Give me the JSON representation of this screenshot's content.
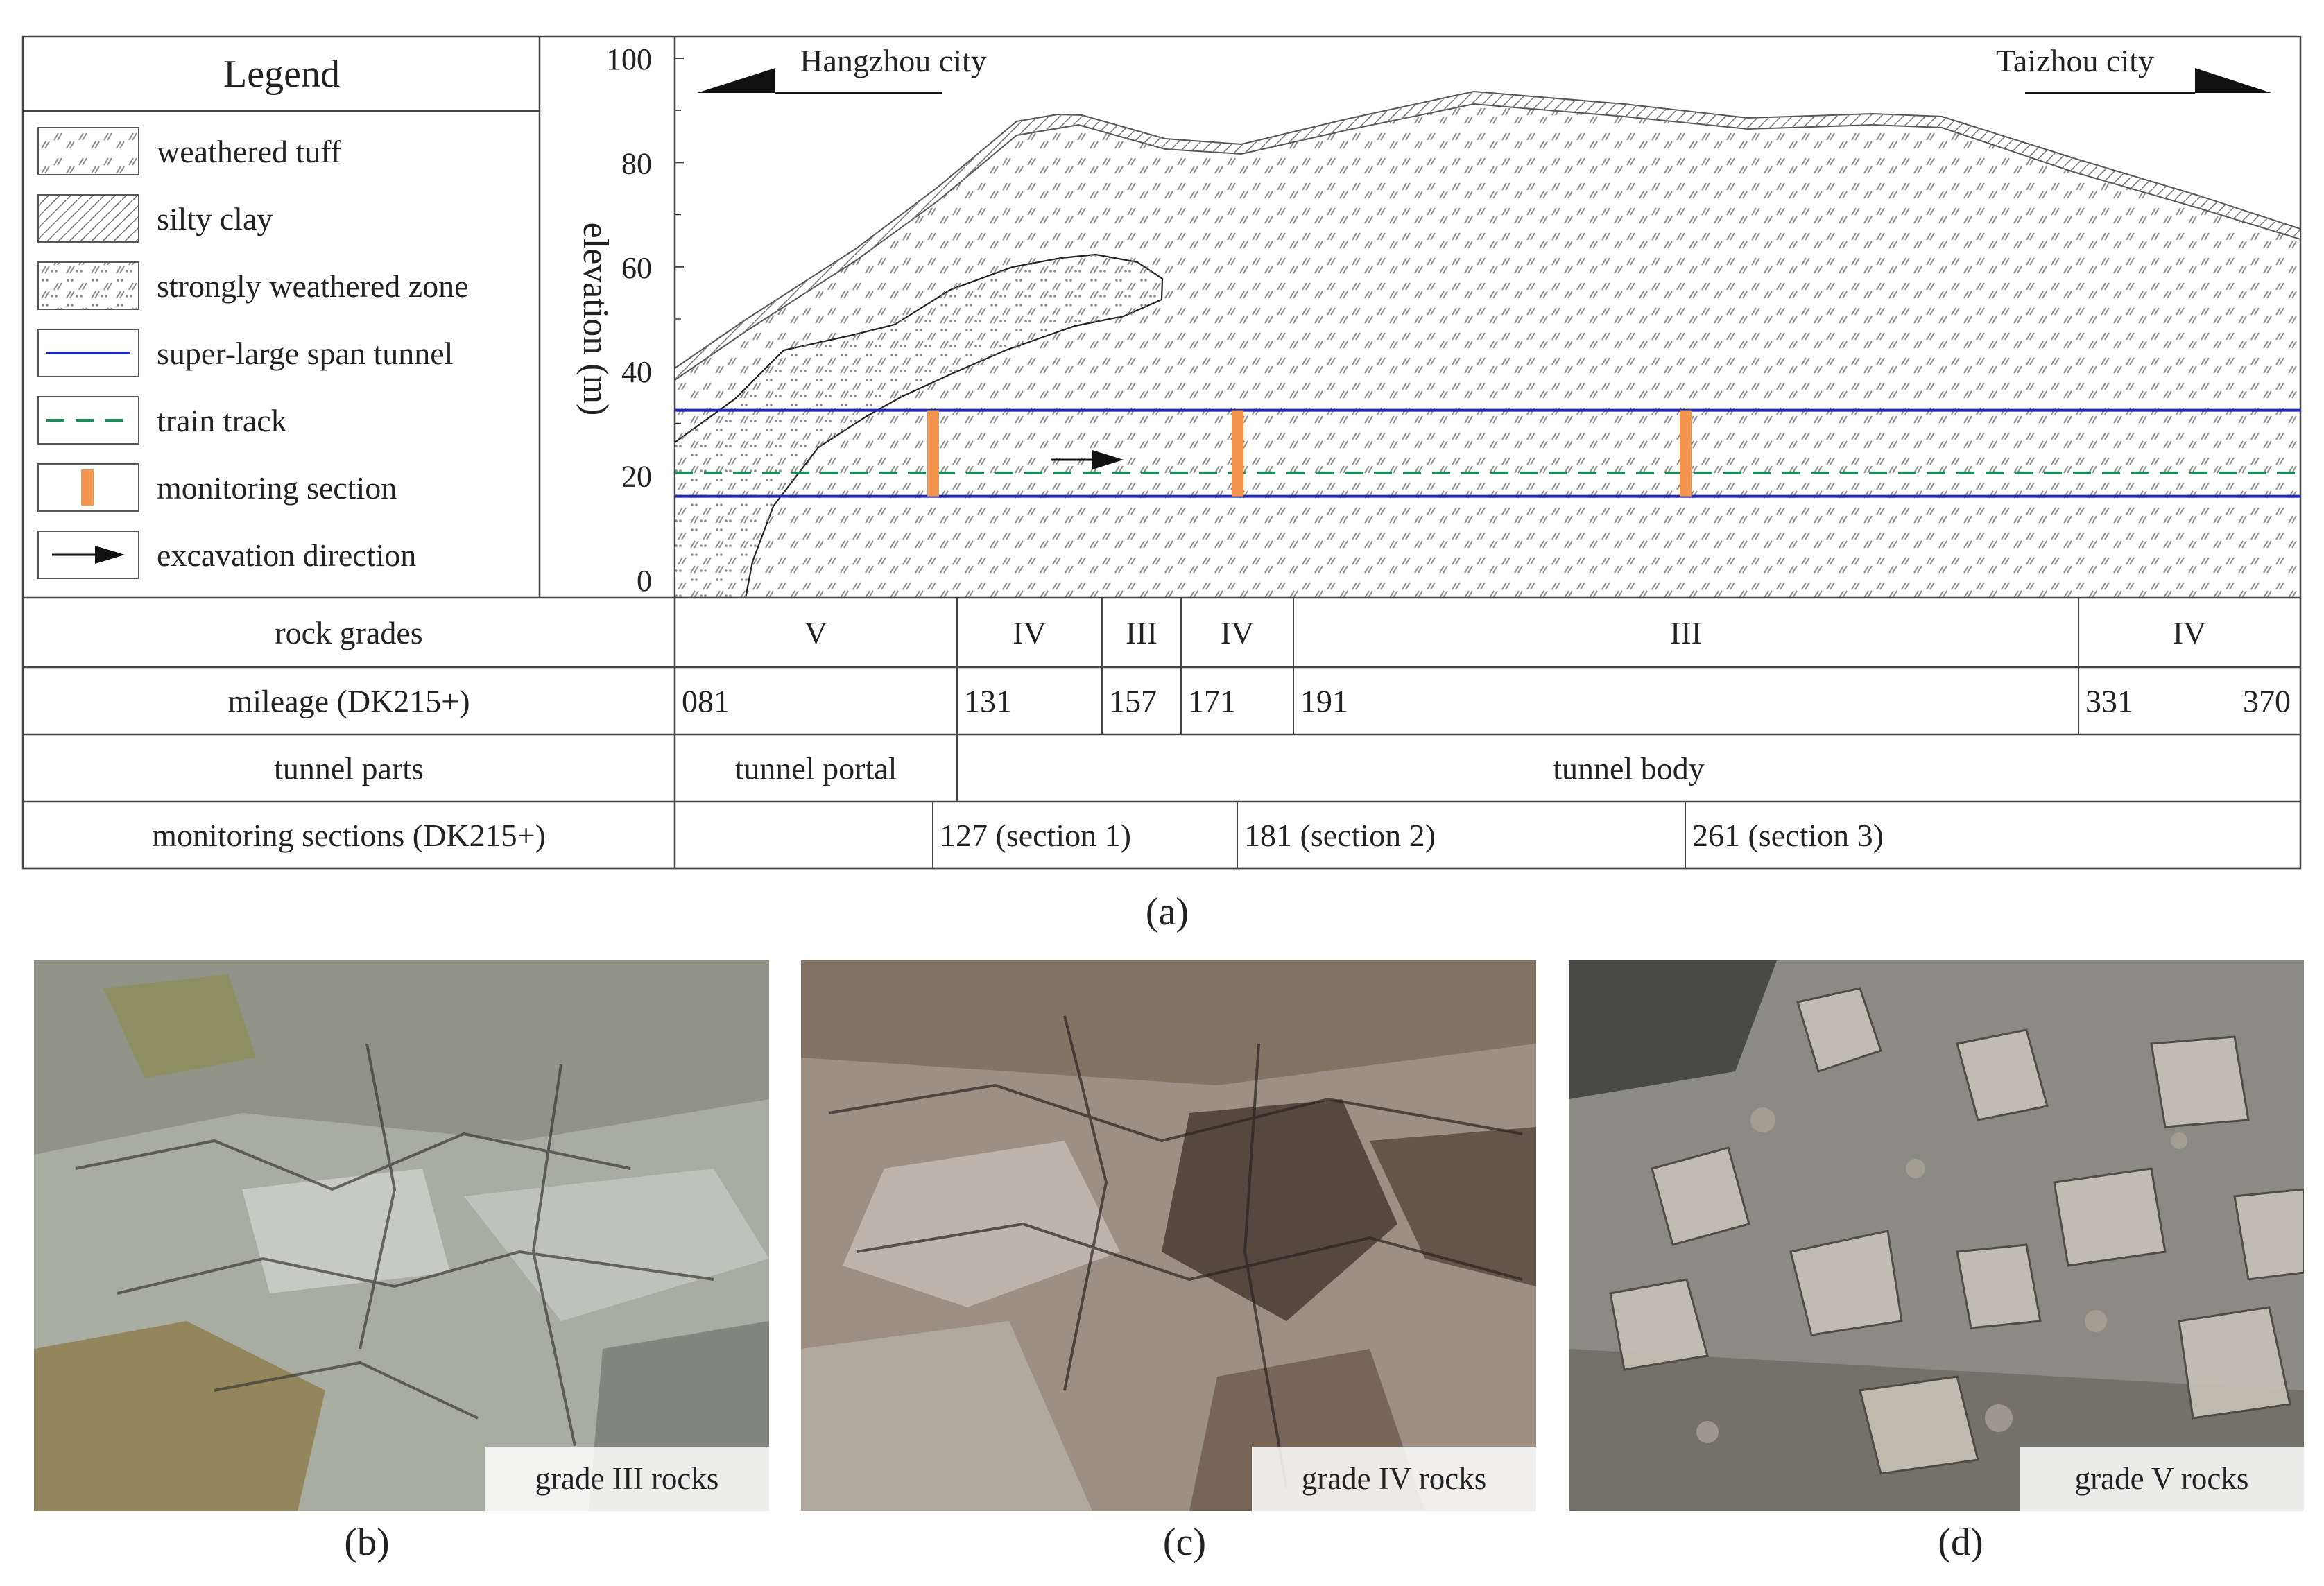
{
  "legend": {
    "title": "Legend",
    "items": [
      {
        "label": "weathered tuff",
        "swatch": "weathered-tuff"
      },
      {
        "label": "silty clay",
        "swatch": "silty-clay"
      },
      {
        "label": "strongly weathered zone",
        "swatch": "strongly-weathered"
      },
      {
        "label": "super-large span tunnel",
        "swatch": "tunnel-line"
      },
      {
        "label": "train track",
        "swatch": "track-line"
      },
      {
        "label": "monitoring section",
        "swatch": "monitoring-bar"
      },
      {
        "label": "excavation direction",
        "swatch": "arrow"
      }
    ]
  },
  "profile": {
    "ylabel": "elevation (m)",
    "yticks": [
      "100",
      "80",
      "60",
      "40",
      "20",
      "0"
    ],
    "left_city": "Hangzhou city",
    "right_city": "Taizhou city",
    "tunnel_crown_elevation_m": 32.5,
    "tunnel_invert_elevation_m": 16,
    "track_elevation_m": 20.5,
    "monitoring_mileages": [
      127,
      181,
      261
    ]
  },
  "table": {
    "rows": [
      {
        "header": "rock grades",
        "cells": [
          {
            "text": "V",
            "from": 81,
            "to": 131
          },
          {
            "text": "IV",
            "from": 131,
            "to": 157
          },
          {
            "text": "III",
            "from": 157,
            "to": 171
          },
          {
            "text": "IV",
            "from": 171,
            "to": 191
          },
          {
            "text": "III",
            "from": 191,
            "to": 331
          },
          {
            "text": "IV",
            "from": 331,
            "to": 370
          }
        ]
      },
      {
        "header": "mileage (DK215+)",
        "cells": [
          {
            "text": "081",
            "from": 81,
            "to": 131
          },
          {
            "text": "131",
            "from": 131,
            "to": 157
          },
          {
            "text": "157",
            "from": 157,
            "to": 171
          },
          {
            "text": "171",
            "from": 171,
            "to": 191
          },
          {
            "text": "191",
            "from": 191,
            "to": 331
          },
          {
            "text": "331",
            "from": 331,
            "to": 370
          }
        ],
        "end_text": "370"
      },
      {
        "header": "tunnel parts",
        "cells": [
          {
            "text": "tunnel portal",
            "from": 81,
            "to": 131
          },
          {
            "text": "tunnel body",
            "from": 131,
            "to": 370
          }
        ]
      },
      {
        "header": "monitoring sections (DK215+)",
        "cells": [
          {
            "text": "",
            "from": 81,
            "to": 127
          },
          {
            "text": "127 (section 1)",
            "from": 127,
            "to": 181
          },
          {
            "text": "181 (section 2)",
            "from": 181,
            "to": 261
          },
          {
            "text": "261 (section 3)",
            "from": 261,
            "to": 370
          }
        ]
      }
    ]
  },
  "figure_caption_a": "(a)",
  "photos": [
    {
      "label": "grade III rocks",
      "caption": "(b)"
    },
    {
      "label": "grade IV rocks",
      "caption": "(c)"
    },
    {
      "label": "grade V rocks",
      "caption": "(d)"
    }
  ],
  "colors": {
    "tunnel": "#1f2ab5",
    "track": "#1e8a5a",
    "monitoring": "#f4954f",
    "line": "#333333"
  }
}
